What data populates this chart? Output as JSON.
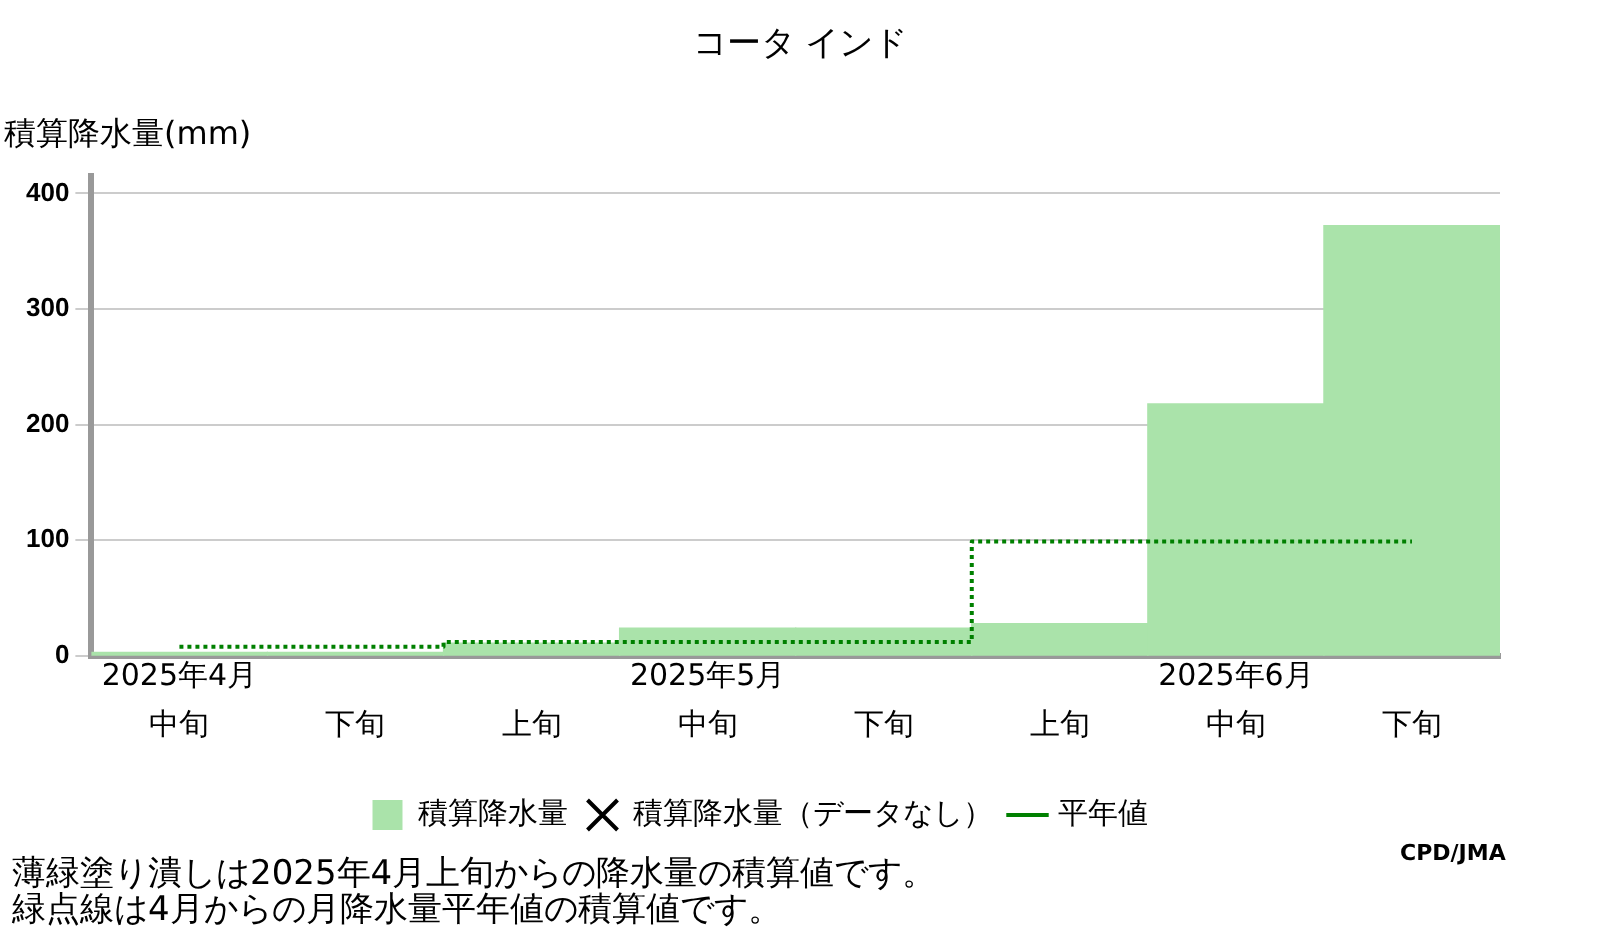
{
  "chart_data": {
    "type": "bar",
    "title": "コータ インド",
    "ylabel": "積算降水量(mm)",
    "categories": [
      "中旬",
      "下旬",
      "上旬",
      "中旬",
      "下旬",
      "上旬",
      "中旬",
      "下旬"
    ],
    "series": [
      {
        "name": "積算降水量",
        "color": "#aae3aa",
        "values": [
          3,
          3,
          11,
          24,
          24,
          28,
          218,
          372
        ]
      },
      {
        "name": "積算降水量（データなし）",
        "type": "scatter",
        "marker": "cross",
        "color": "#000000",
        "values": [
          null,
          null,
          null,
          null,
          null,
          null,
          null,
          null
        ]
      },
      {
        "name": "平年値",
        "type": "step",
        "color": "#008000",
        "line_style": "dotted",
        "values": [
          8,
          8,
          12,
          12,
          12,
          99,
          99,
          99
        ]
      }
    ],
    "ylim": [
      0,
      415
    ],
    "yticks": [
      0,
      100,
      200,
      300,
      400
    ],
    "grid": "y",
    "legend": "bottom",
    "annotations": [
      "2025年4月",
      "2025年5月",
      "2025年6月",
      "CPD/JMA",
      "薄緑塗り潰しは2025年4月上旬からの降水量の積算値です。",
      "緑点線は4月からの月降水量平年値の積算値です。"
    ]
  }
}
